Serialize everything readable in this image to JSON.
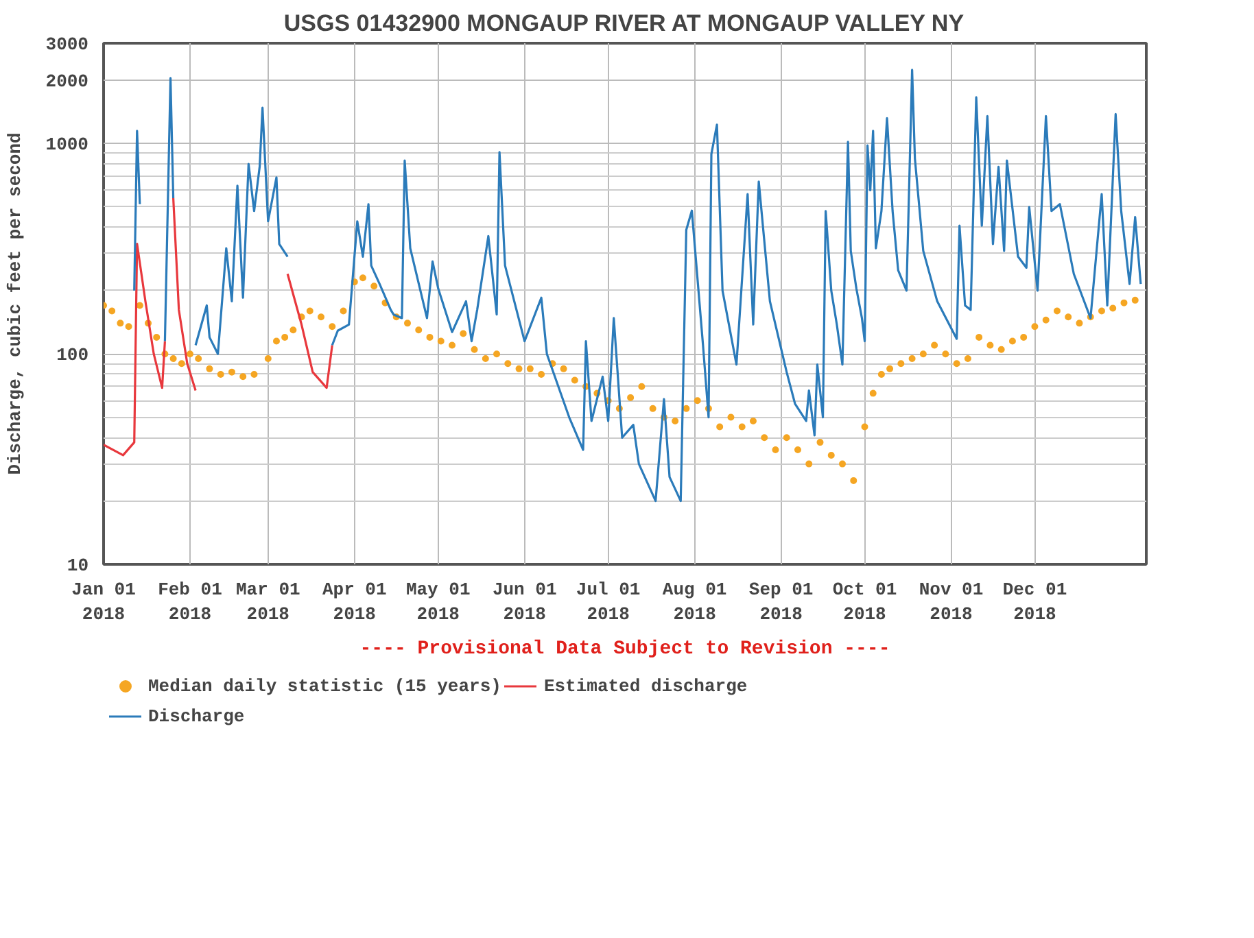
{
  "chart_data": {
    "type": "line",
    "title": "USGS 01432900 MONGAUP RIVER AT MONGAUP VALLEY NY",
    "ylabel": "Discharge, cubic feet per second",
    "annotations": [
      "---- Provisional Data Subject to Revision ----"
    ],
    "log": "y",
    "grid": true,
    "legend": "bottom",
    "xlim": [
      "2018-01-01",
      "2019-01-10"
    ],
    "xticks": [
      {
        "value": "2018-01-01",
        "label": "Jan 01\n2018"
      },
      {
        "value": "2018-02-01",
        "label": "Feb 01\n2018"
      },
      {
        "value": "2018-03-01",
        "label": "Mar 01\n2018"
      },
      {
        "value": "2018-04-01",
        "label": "Apr 01\n2018"
      },
      {
        "value": "2018-05-01",
        "label": "May 01\n2018"
      },
      {
        "value": "2018-06-01",
        "label": "Jun 01\n2018"
      },
      {
        "value": "2018-07-01",
        "label": "Jul 01\n2018"
      },
      {
        "value": "2018-08-01",
        "label": "Aug 01\n2018"
      },
      {
        "value": "2018-09-01",
        "label": "Sep 01\n2018"
      },
      {
        "value": "2018-10-01",
        "label": "Oct 01\n2018"
      },
      {
        "value": "2018-11-01",
        "label": "Nov 01\n2018"
      },
      {
        "value": "2018-12-01",
        "label": "Dec 01\n2018"
      }
    ],
    "ylim": [
      10,
      3000
    ],
    "yticks": [
      10,
      100,
      1000,
      2000,
      3000
    ],
    "series": [
      {
        "name": "Median daily statistic (15 years)",
        "type": "scatter",
        "marker": "circle",
        "color": "#f5a623",
        "x": [
          "2018-01-01",
          "2018-01-04",
          "2018-01-07",
          "2018-01-10",
          "2018-01-14",
          "2018-01-17",
          "2018-01-20",
          "2018-01-23",
          "2018-01-26",
          "2018-01-29",
          "2018-02-01",
          "2018-02-04",
          "2018-02-08",
          "2018-02-12",
          "2018-02-16",
          "2018-02-20",
          "2018-02-24",
          "2018-03-01",
          "2018-03-04",
          "2018-03-07",
          "2018-03-10",
          "2018-03-13",
          "2018-03-16",
          "2018-03-20",
          "2018-03-24",
          "2018-03-28",
          "2018-04-01",
          "2018-04-04",
          "2018-04-08",
          "2018-04-12",
          "2018-04-16",
          "2018-04-20",
          "2018-04-24",
          "2018-04-28",
          "2018-05-02",
          "2018-05-06",
          "2018-05-10",
          "2018-05-14",
          "2018-05-18",
          "2018-05-22",
          "2018-05-26",
          "2018-05-30",
          "2018-06-03",
          "2018-06-07",
          "2018-06-11",
          "2018-06-15",
          "2018-06-19",
          "2018-06-23",
          "2018-06-27",
          "2018-07-01",
          "2018-07-05",
          "2018-07-09",
          "2018-07-13",
          "2018-07-17",
          "2018-07-21",
          "2018-07-25",
          "2018-07-29",
          "2018-08-02",
          "2018-08-06",
          "2018-08-10",
          "2018-08-14",
          "2018-08-18",
          "2018-08-22",
          "2018-08-26",
          "2018-08-30",
          "2018-09-03",
          "2018-09-07",
          "2018-09-11",
          "2018-09-15",
          "2018-09-19",
          "2018-09-23",
          "2018-09-27",
          "2018-10-01",
          "2018-10-04",
          "2018-10-07",
          "2018-10-10",
          "2018-10-14",
          "2018-10-18",
          "2018-10-22",
          "2018-10-26",
          "2018-10-30",
          "2018-11-03",
          "2018-11-07",
          "2018-11-11",
          "2018-11-15",
          "2018-11-19",
          "2018-11-23",
          "2018-11-27",
          "2018-12-01",
          "2018-12-05",
          "2018-12-09",
          "2018-12-13",
          "2018-12-17",
          "2018-12-21",
          "2018-12-25",
          "2018-12-29",
          "2019-01-02",
          "2019-01-06"
        ],
        "values": [
          170,
          160,
          140,
          135,
          170,
          140,
          120,
          100,
          95,
          90,
          100,
          95,
          85,
          80,
          82,
          78,
          80,
          95,
          115,
          120,
          130,
          150,
          160,
          150,
          135,
          160,
          220,
          230,
          210,
          175,
          150,
          140,
          130,
          120,
          115,
          110,
          125,
          105,
          95,
          100,
          90,
          85,
          85,
          80,
          90,
          85,
          75,
          70,
          65,
          60,
          55,
          62,
          70,
          55,
          50,
          48,
          55,
          60,
          55,
          45,
          50,
          45,
          48,
          40,
          35,
          40,
          35,
          30,
          38,
          33,
          30,
          25,
          45,
          65,
          80,
          85,
          90,
          95,
          100,
          110,
          100,
          90,
          95,
          120,
          110,
          105,
          115,
          120,
          135,
          145,
          160,
          150,
          140,
          150,
          160,
          165,
          175,
          180
        ]
      },
      {
        "name": "Estimated discharge",
        "color": "#e8383d",
        "x": [
          "2018-01-01",
          "2018-01-08",
          "2018-01-12",
          "2018-01-13",
          "2018-01-16",
          "2018-01-19",
          "2018-01-22",
          "2018-01-23",
          "2018-01-24",
          "2018-01-26",
          "2018-01-28",
          "2018-01-31",
          "2018-02-03",
          "2018-02-20",
          "2018-03-08",
          "2018-03-13",
          "2018-03-17",
          "2018-03-22",
          "2018-03-24"
        ],
        "values": [
          37,
          33,
          38,
          334,
          178,
          100,
          69,
          115,
          null,
          550,
          162,
          90,
          67,
          null,
          240,
          138,
          82,
          69,
          110
        ]
      },
      {
        "name": "Discharge",
        "color": "#2b7bba",
        "x": [
          "2018-01-12",
          "2018-01-13",
          "2018-01-14",
          "2018-01-18",
          "2018-01-23",
          "2018-01-25",
          "2018-01-26",
          "2018-01-30",
          "2018-02-03",
          "2018-02-07",
          "2018-02-08",
          "2018-02-11",
          "2018-02-14",
          "2018-02-16",
          "2018-02-18",
          "2018-02-20",
          "2018-02-22",
          "2018-02-24",
          "2018-02-26",
          "2018-02-27",
          "2018-03-01",
          "2018-03-04",
          "2018-03-05",
          "2018-03-08",
          "2018-03-15",
          "2018-03-24",
          "2018-03-26",
          "2018-03-30",
          "2018-04-02",
          "2018-04-04",
          "2018-04-06",
          "2018-04-07",
          "2018-04-10",
          "2018-04-14",
          "2018-04-15",
          "2018-04-18",
          "2018-04-19",
          "2018-04-21",
          "2018-04-27",
          "2018-04-29",
          "2018-05-01",
          "2018-05-06",
          "2018-05-11",
          "2018-05-13",
          "2018-05-15",
          "2018-05-19",
          "2018-05-22",
          "2018-05-23",
          "2018-05-25",
          "2018-06-01",
          "2018-06-07",
          "2018-06-09",
          "2018-06-17",
          "2018-06-22",
          "2018-06-23",
          "2018-06-25",
          "2018-06-29",
          "2018-07-01",
          "2018-07-03",
          "2018-07-06",
          "2018-07-10",
          "2018-07-12",
          "2018-07-18",
          "2018-07-21",
          "2018-07-23",
          "2018-07-27",
          "2018-07-29",
          "2018-07-31",
          "2018-08-04",
          "2018-08-06",
          "2018-08-07",
          "2018-08-09",
          "2018-08-11",
          "2018-08-16",
          "2018-08-20",
          "2018-08-22",
          "2018-08-24",
          "2018-08-28",
          "2018-09-03",
          "2018-09-06",
          "2018-09-10",
          "2018-09-11",
          "2018-09-13",
          "2018-09-14",
          "2018-09-16",
          "2018-09-17",
          "2018-09-19",
          "2018-09-21",
          "2018-09-23",
          "2018-09-25",
          "2018-09-26",
          "2018-09-28",
          "2018-09-30",
          "2018-10-01",
          "2018-10-02",
          "2018-10-03",
          "2018-10-04",
          "2018-10-05",
          "2018-10-07",
          "2018-10-09",
          "2018-10-11",
          "2018-10-13",
          "2018-10-16",
          "2018-10-18",
          "2018-10-19",
          "2018-10-22",
          "2018-10-27",
          "2018-11-03",
          "2018-11-04",
          "2018-11-06",
          "2018-11-08",
          "2018-11-10",
          "2018-11-12",
          "2018-11-14",
          "2018-11-16",
          "2018-11-18",
          "2018-11-20",
          "2018-11-21",
          "2018-11-25",
          "2018-11-28",
          "2018-11-29",
          "2018-12-02",
          "2018-12-05",
          "2018-12-07",
          "2018-12-10",
          "2018-12-15",
          "2018-12-21",
          "2018-12-25",
          "2018-12-27",
          "2018-12-30",
          "2019-01-01",
          "2019-01-04",
          "2019-01-06",
          "2019-01-08"
        ],
        "values": [
          200,
          1150,
          515,
          null,
          115,
          2050,
          550,
          null,
          110,
          170,
          120,
          100,
          318,
          178,
          630,
          185,
          800,
          478,
          780,
          1480,
          427,
          690,
          333,
          290,
          null,
          110,
          129,
          138,
          427,
          290,
          515,
          263,
          215,
          162,
          154,
          148,
          830,
          318,
          148,
          275,
          205,
          127,
          178,
          115,
          162,
          363,
          154,
          910,
          263,
          115,
          185,
          100,
          50,
          35,
          115,
          48,
          78,
          48,
          148,
          40,
          46,
          30,
          20,
          61,
          26,
          20,
          389,
          480,
          110,
          50,
          890,
          1230,
          200,
          89,
          575,
          138,
          660,
          178,
          82,
          58,
          48,
          67,
          41,
          89,
          50,
          478,
          200,
          138,
          89,
          1020,
          309,
          205,
          148,
          115,
          980,
          600,
          1150,
          318,
          478,
          1320,
          478,
          250,
          200,
          2240,
          850,
          309,
          178,
          118,
          407,
          170,
          162,
          1660,
          407,
          1350,
          333,
          775,
          309,
          830,
          290,
          257,
          500,
          200,
          1350,
          478,
          515,
          240,
          148,
          575,
          170,
          1380,
          478,
          215,
          447,
          215
        ]
      }
    ]
  }
}
